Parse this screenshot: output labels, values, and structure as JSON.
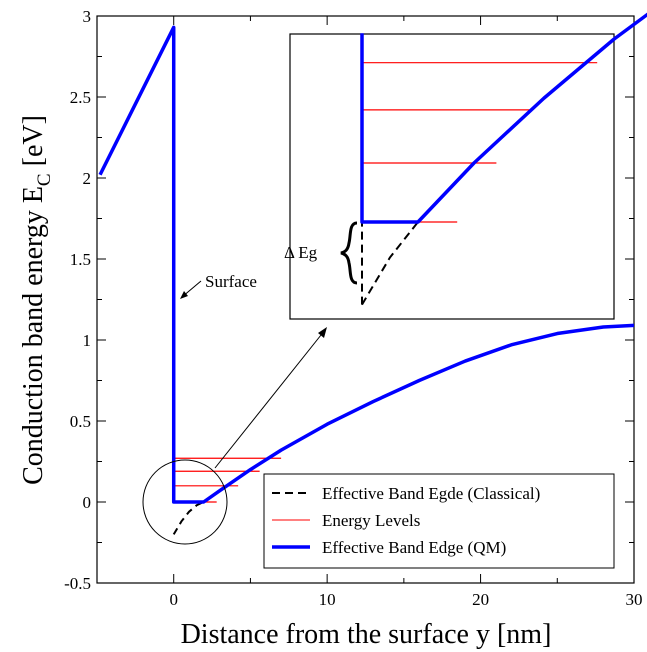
{
  "chart_data": {
    "type": "line",
    "title": "",
    "xlabel": "Distance from the surface y [nm]",
    "ylabel_main": "Conduction band energy E",
    "ylabel_sub": "C",
    "ylabel_unit": " [eV]",
    "xlim": [
      -5,
      30
    ],
    "ylim": [
      -0.5,
      3
    ],
    "x_ticks": [
      {
        "value": 0,
        "label": "0"
      },
      {
        "value": 10,
        "label": "10"
      },
      {
        "value": 20,
        "label": "20"
      },
      {
        "value": 30,
        "label": "30"
      }
    ],
    "y_ticks": [
      {
        "value": -0.5,
        "label": "-0.5"
      },
      {
        "value": 0,
        "label": "0"
      },
      {
        "value": 0.5,
        "label": "0.5"
      },
      {
        "value": 1,
        "label": "1"
      },
      {
        "value": 1.5,
        "label": "1.5"
      },
      {
        "value": 2,
        "label": "2"
      },
      {
        "value": 2.5,
        "label": "2.5"
      },
      {
        "value": 3,
        "label": "3"
      }
    ],
    "grid": false,
    "legend_position": "bottom-right",
    "series": [
      {
        "name": "Effective Band Egde (Classical)",
        "style": "dashed",
        "color": "#000000",
        "points": [
          [
            0,
            -0.2
          ],
          [
            0.5,
            -0.12
          ],
          [
            1,
            -0.06
          ],
          [
            1.5,
            -0.02
          ],
          [
            1.95,
            0.0
          ]
        ]
      },
      {
        "name": "Energy Levels",
        "style": "solid",
        "color": "#ff0000",
        "segments": [
          {
            "y": 0.0,
            "x0": 0,
            "x1": 2.8
          },
          {
            "y": 0.1,
            "x0": 0,
            "x1": 4.2
          },
          {
            "y": 0.19,
            "x0": 0,
            "x1": 5.6
          },
          {
            "y": 0.27,
            "x0": 0,
            "x1": 7.0
          }
        ]
      },
      {
        "name": "Effective Band Edge (QM)",
        "style": "solid",
        "color": "#0000ff",
        "points": [
          [
            -4.8,
            2.02
          ],
          [
            0,
            2.93
          ],
          [
            0,
            0
          ],
          [
            1.95,
            0
          ],
          [
            3,
            0.07
          ],
          [
            5,
            0.2
          ],
          [
            7,
            0.32
          ],
          [
            10,
            0.48
          ],
          [
            13,
            0.62
          ],
          [
            16,
            0.75
          ],
          [
            19,
            0.87
          ],
          [
            22,
            0.97
          ],
          [
            25,
            1.04
          ],
          [
            28,
            1.08
          ],
          [
            30,
            1.09
          ]
        ]
      }
    ],
    "annotations": [
      {
        "text": "Surface"
      },
      {
        "text": "Δ Eg"
      }
    ],
    "inset": {
      "description_none": "",
      "levels_y": [
        0.0,
        0.1,
        0.19,
        0.27
      ]
    }
  },
  "colors": {
    "qm": "#0000ff",
    "levels": "#ff0000",
    "classical": "#000000"
  }
}
